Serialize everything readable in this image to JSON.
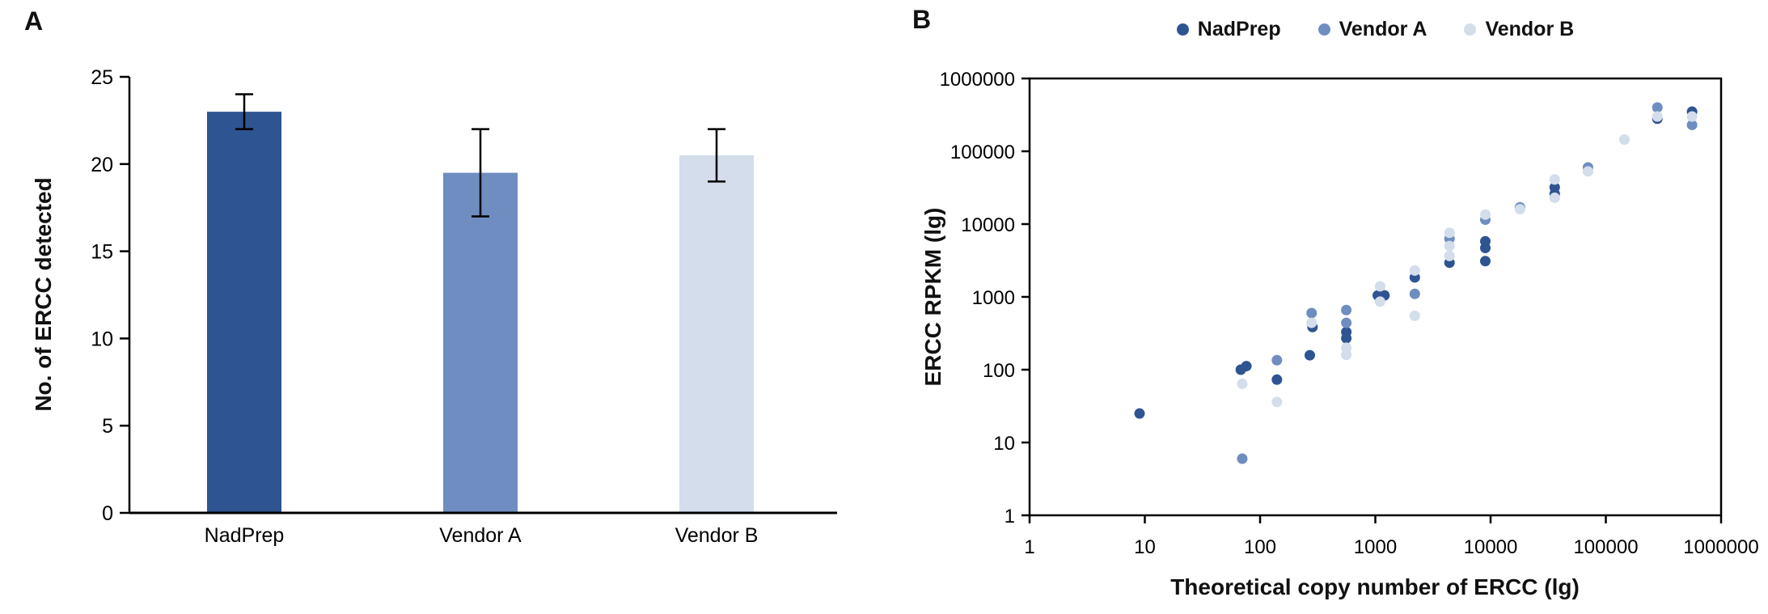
{
  "figure": {
    "panel_a_letter": "A",
    "panel_b_letter": "B"
  },
  "chart_data": [
    {
      "panel": "A",
      "type": "bar",
      "title": "",
      "xlabel": "",
      "ylabel": "No. of ERCC detected",
      "categories": [
        "NadPrep",
        "Vendor A",
        "Vendor B"
      ],
      "values": [
        23,
        19.5,
        20.5
      ],
      "error_low": [
        22,
        17,
        19
      ],
      "error_high": [
        24,
        22,
        22
      ],
      "ylim": [
        0,
        25
      ],
      "y_ticks": [
        0,
        5,
        10,
        15,
        20,
        25
      ],
      "grid": false,
      "bar_colors": [
        "#2e5491",
        "#6f8dc0",
        "#d3ddec"
      ]
    },
    {
      "panel": "B",
      "type": "scatter",
      "title": "",
      "xlabel": "Theoretical copy number of ERCC (lg)",
      "ylabel": "ERCC RPKM (lg)",
      "xscale": "log",
      "yscale": "log",
      "xlim": [
        1,
        1000000
      ],
      "ylim": [
        1,
        1000000
      ],
      "x_ticks": [
        1,
        10,
        100,
        1000,
        10000,
        100000,
        1000000
      ],
      "y_ticks": [
        1,
        10,
        100,
        1000,
        10000,
        100000,
        1000000
      ],
      "grid": false,
      "legend_position": "top",
      "series": [
        {
          "name": "NadPrep",
          "color": "#2e5491",
          "points": [
            [
              9,
              25
            ],
            [
              68,
              100
            ],
            [
              76,
              112
            ],
            [
              140,
              73
            ],
            [
              270,
              158
            ],
            [
              285,
              385
            ],
            [
              560,
              330
            ],
            [
              560,
              270
            ],
            [
              1050,
              1050
            ],
            [
              1200,
              1050
            ],
            [
              2200,
              1850
            ],
            [
              4400,
              2950
            ],
            [
              9000,
              5800
            ],
            [
              9000,
              4700
            ],
            [
              9000,
              3100
            ],
            [
              36000,
              32000
            ],
            [
              36000,
              26000
            ],
            [
              280000,
              280000
            ],
            [
              560000,
              350000
            ]
          ]
        },
        {
          "name": "Vendor A",
          "color": "#6f8dc0",
          "points": [
            [
              70,
              6
            ],
            [
              140,
              135
            ],
            [
              280,
              600
            ],
            [
              560,
              660
            ],
            [
              560,
              440
            ],
            [
              2200,
              1100
            ],
            [
              4400,
              6300
            ],
            [
              9000,
              11500
            ],
            [
              18000,
              17000
            ],
            [
              70000,
              60000
            ],
            [
              280000,
              400000
            ],
            [
              560000,
              230000
            ]
          ]
        },
        {
          "name": "Vendor B",
          "color": "#d3ddec",
          "points": [
            [
              70,
              64
            ],
            [
              140,
              36
            ],
            [
              280,
              440
            ],
            [
              560,
              200
            ],
            [
              560,
              160
            ],
            [
              1100,
              1400
            ],
            [
              1100,
              860
            ],
            [
              2200,
              2300
            ],
            [
              2200,
              550
            ],
            [
              4400,
              7600
            ],
            [
              4400,
              5000
            ],
            [
              4400,
              3650
            ],
            [
              9000,
              13500
            ],
            [
              18000,
              16000
            ],
            [
              36000,
              41000
            ],
            [
              36000,
              23000
            ],
            [
              70000,
              53000
            ],
            [
              145000,
              145000
            ],
            [
              280000,
              300000
            ],
            [
              560000,
              300000
            ]
          ]
        }
      ]
    }
  ]
}
